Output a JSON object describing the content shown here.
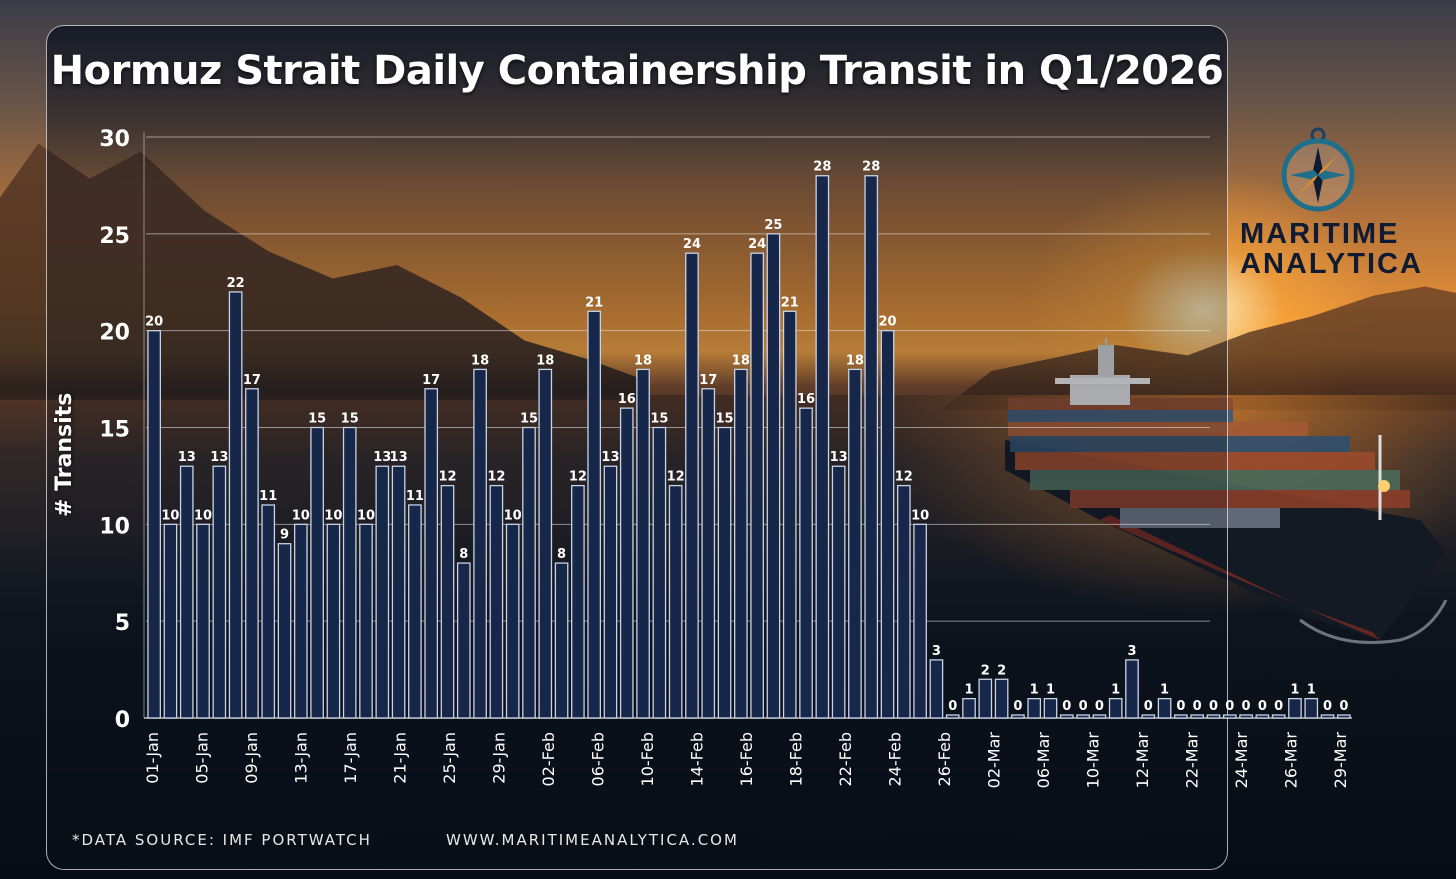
{
  "header": {
    "title": "Hormuz Strait Daily Containership Transit in Q1/2026"
  },
  "footer": {
    "source": "*DATA SOURCE: IMF PORTWATCH",
    "url": "WWW.MARITIMEANALYTICA.COM"
  },
  "logo": {
    "line1": "MARITIME",
    "line2": "ANALYTICA",
    "icon": "compass-icon"
  },
  "colors": {
    "bar_fill": "#16274a",
    "bar_stroke": "#c9d3e6",
    "text": "#ffffff",
    "logo_text": "#0f1a33",
    "logo_accent": "#1f6f8b",
    "logo_needle": "#e0902a"
  },
  "chart_data": {
    "type": "bar",
    "title": "Hormuz Strait Daily Containership Transit in Q1/2026",
    "xlabel": "",
    "ylabel": "# Transits",
    "ylim": [
      0,
      30
    ],
    "yticks": [
      0,
      5,
      10,
      15,
      20,
      25,
      30
    ],
    "grid": true,
    "legend": "none",
    "x_tick_labels": [
      "01-Jan",
      "05-Jan",
      "09-Jan",
      "13-Jan",
      "17-Jan",
      "21-Jan",
      "25-Jan",
      "29-Jan",
      "02-Feb",
      "06-Feb",
      "10-Feb",
      "14-Feb",
      "16-Feb",
      "18-Feb",
      "22-Feb",
      "24-Feb",
      "26-Feb",
      "02-Mar",
      "06-Mar",
      "10-Mar",
      "12-Mar",
      "22-Mar",
      "24-Mar",
      "26-Mar",
      "29-Mar"
    ],
    "values": [
      20,
      10,
      13,
      10,
      13,
      22,
      17,
      11,
      9,
      10,
      15,
      10,
      15,
      10,
      13,
      13,
      11,
      17,
      12,
      8,
      18,
      12,
      10,
      15,
      18,
      8,
      12,
      21,
      13,
      16,
      18,
      15,
      12,
      24,
      17,
      15,
      18,
      24,
      25,
      21,
      16,
      28,
      13,
      18,
      28,
      20,
      12,
      10,
      3,
      0,
      1,
      2,
      2,
      0,
      1,
      1,
      0,
      0,
      0,
      1,
      3,
      0,
      1,
      0,
      0,
      0,
      0,
      0,
      0,
      0,
      1,
      1,
      0,
      0
    ]
  }
}
